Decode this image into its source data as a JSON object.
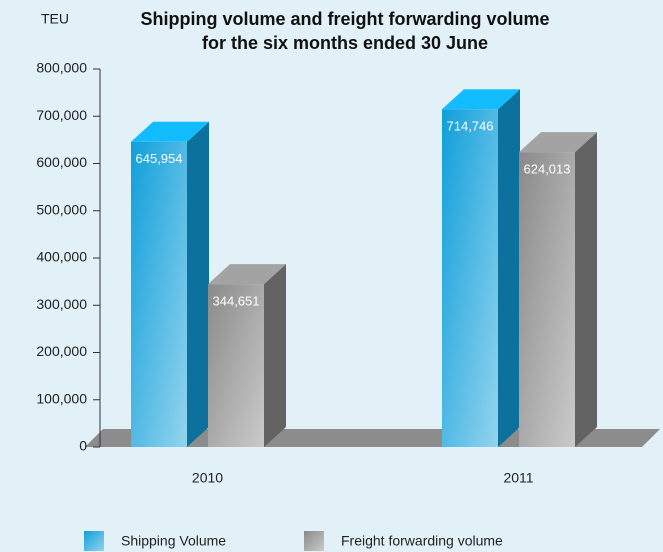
{
  "chart_data": {
    "type": "bar3d",
    "title": [
      "Shipping volume and freight forwarding volume",
      "for the six months ended 30 June"
    ],
    "ylabel": "TEU",
    "categories": [
      "2010",
      "2011"
    ],
    "series": [
      {
        "name": "Shipping Volume",
        "color": "#109fda",
        "values": [
          645954,
          714746
        ],
        "value_labels": [
          "645,954",
          "714,746"
        ]
      },
      {
        "name": "Freight forwarding volume",
        "color": "#8a8a8a",
        "values": [
          344651,
          624013
        ],
        "value_labels": [
          "344,651",
          "624,013"
        ]
      }
    ],
    "ylim": [
      0,
      800000
    ],
    "yticks": [
      0,
      {
        "value": 100000,
        "label": "100,000"
      },
      {
        "value": 200000,
        "label": "200,000"
      },
      {
        "value": 300000,
        "label": "300,000"
      },
      {
        "value": 400000,
        "label": "400,000"
      },
      {
        "value": 500000,
        "label": "500,000"
      },
      {
        "value": 600000,
        "label": "600,000"
      },
      {
        "value": 700000,
        "label": "700,000"
      },
      {
        "value": 800000,
        "label": "800,000"
      }
    ],
    "legend": "bottom"
  }
}
